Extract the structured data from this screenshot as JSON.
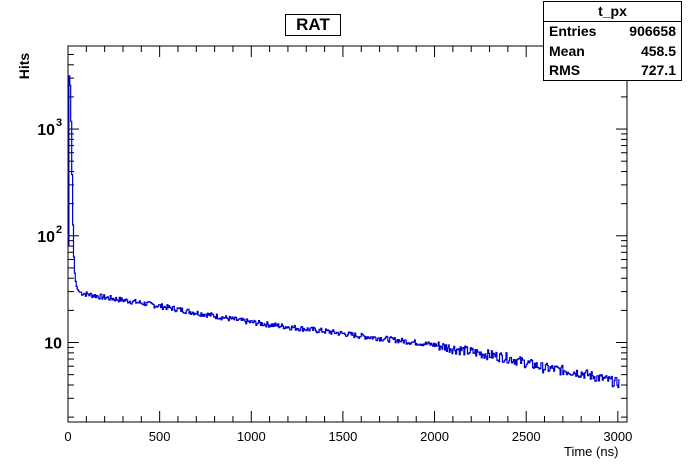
{
  "chart_data": {
    "type": "line",
    "title": "RAT",
    "xlabel": "Time (ns)",
    "ylabel": "Hits",
    "xlim": [
      0,
      3050
    ],
    "ylim": [
      1.8,
      6000
    ],
    "yscale": "log",
    "grid": false,
    "color": "#0000cc",
    "x_ticks": [
      0,
      500,
      1000,
      1500,
      2000,
      2500,
      3000
    ],
    "x_tick_labels": [
      "0",
      "500",
      "1000",
      "1500",
      "2000",
      "2500",
      "3000"
    ],
    "y_ticks": [
      10,
      100,
      1000
    ],
    "y_tick_labels": [
      {
        "base": "10",
        "exp": ""
      },
      {
        "base": "10",
        "exp": "2"
      },
      {
        "base": "10",
        "exp": "3"
      }
    ],
    "series": [
      {
        "x": [
          0,
          5,
          10,
          15,
          20,
          25,
          30,
          35,
          40,
          45,
          50,
          60,
          80,
          100,
          150,
          200,
          300,
          400,
          500,
          600,
          700,
          800,
          900,
          1000,
          1200,
          1400,
          1600,
          1800,
          2000,
          2200,
          2400,
          2600,
          2800,
          3000
        ],
        "y": [
          2.2,
          3000,
          3300,
          2000,
          700,
          200,
          80,
          50,
          40,
          35,
          32,
          30,
          29,
          28.5,
          27.5,
          26.5,
          25,
          23.5,
          22,
          20.5,
          19,
          17.8,
          16.5,
          15.5,
          14,
          12.8,
          11.5,
          10.5,
          9.5,
          8.2,
          7.2,
          5.8,
          5.2,
          4.2
        ]
      }
    ]
  },
  "stats": {
    "name": "t_px",
    "rows": [
      {
        "label": "Entries",
        "value": "906658"
      },
      {
        "label": "Mean",
        "value": "458.5"
      },
      {
        "label": "RMS",
        "value": "727.1"
      }
    ]
  }
}
